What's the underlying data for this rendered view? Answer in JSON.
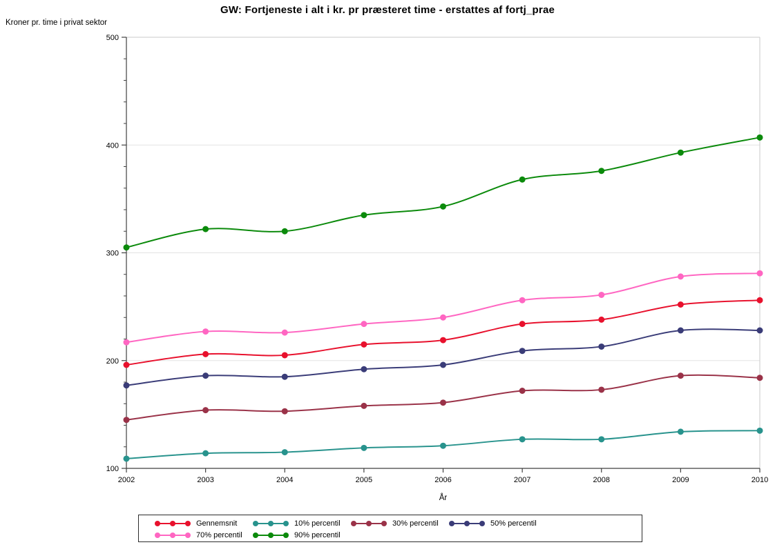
{
  "chart_data": {
    "type": "line",
    "title": "GW: Fortjeneste i alt i kr. pr præsteret time - erstattes af fortj_prae",
    "ylabel": "Kroner pr. time i privat sektor",
    "xlabel": "År",
    "x": [
      2002,
      2003,
      2004,
      2005,
      2006,
      2007,
      2008,
      2009,
      2010
    ],
    "ylim": [
      100,
      500
    ],
    "yticks": [
      100,
      200,
      300,
      400,
      500
    ],
    "y_minor_tick_step": 20,
    "grid": true,
    "legend_position": "bottom",
    "series": [
      {
        "name": "Gennemsnit",
        "color": "#e8112d",
        "values": [
          196,
          206,
          205,
          215,
          219,
          234,
          238,
          252,
          256
        ]
      },
      {
        "name": "10% percentil",
        "color": "#28938d",
        "values": [
          109,
          114,
          115,
          119,
          121,
          127,
          127,
          134,
          135
        ]
      },
      {
        "name": "30% percentil",
        "color": "#9a3248",
        "values": [
          145,
          154,
          153,
          158,
          161,
          172,
          173,
          186,
          184
        ]
      },
      {
        "name": "50% percentil",
        "color": "#3a3c78",
        "values": [
          177,
          186,
          185,
          192,
          196,
          209,
          213,
          228,
          228
        ]
      },
      {
        "name": "70% percentil",
        "color": "#ff66c2",
        "values": [
          217,
          227,
          226,
          234,
          240,
          256,
          261,
          278,
          281
        ]
      },
      {
        "name": "90% percentil",
        "color": "#0b8a0b",
        "values": [
          305,
          322,
          320,
          335,
          343,
          368,
          376,
          393,
          407
        ]
      }
    ],
    "plot_frame_color": "#c9c9c9",
    "axis_color": "#3f3f3f",
    "gridline_color": "#e3e3e3"
  }
}
